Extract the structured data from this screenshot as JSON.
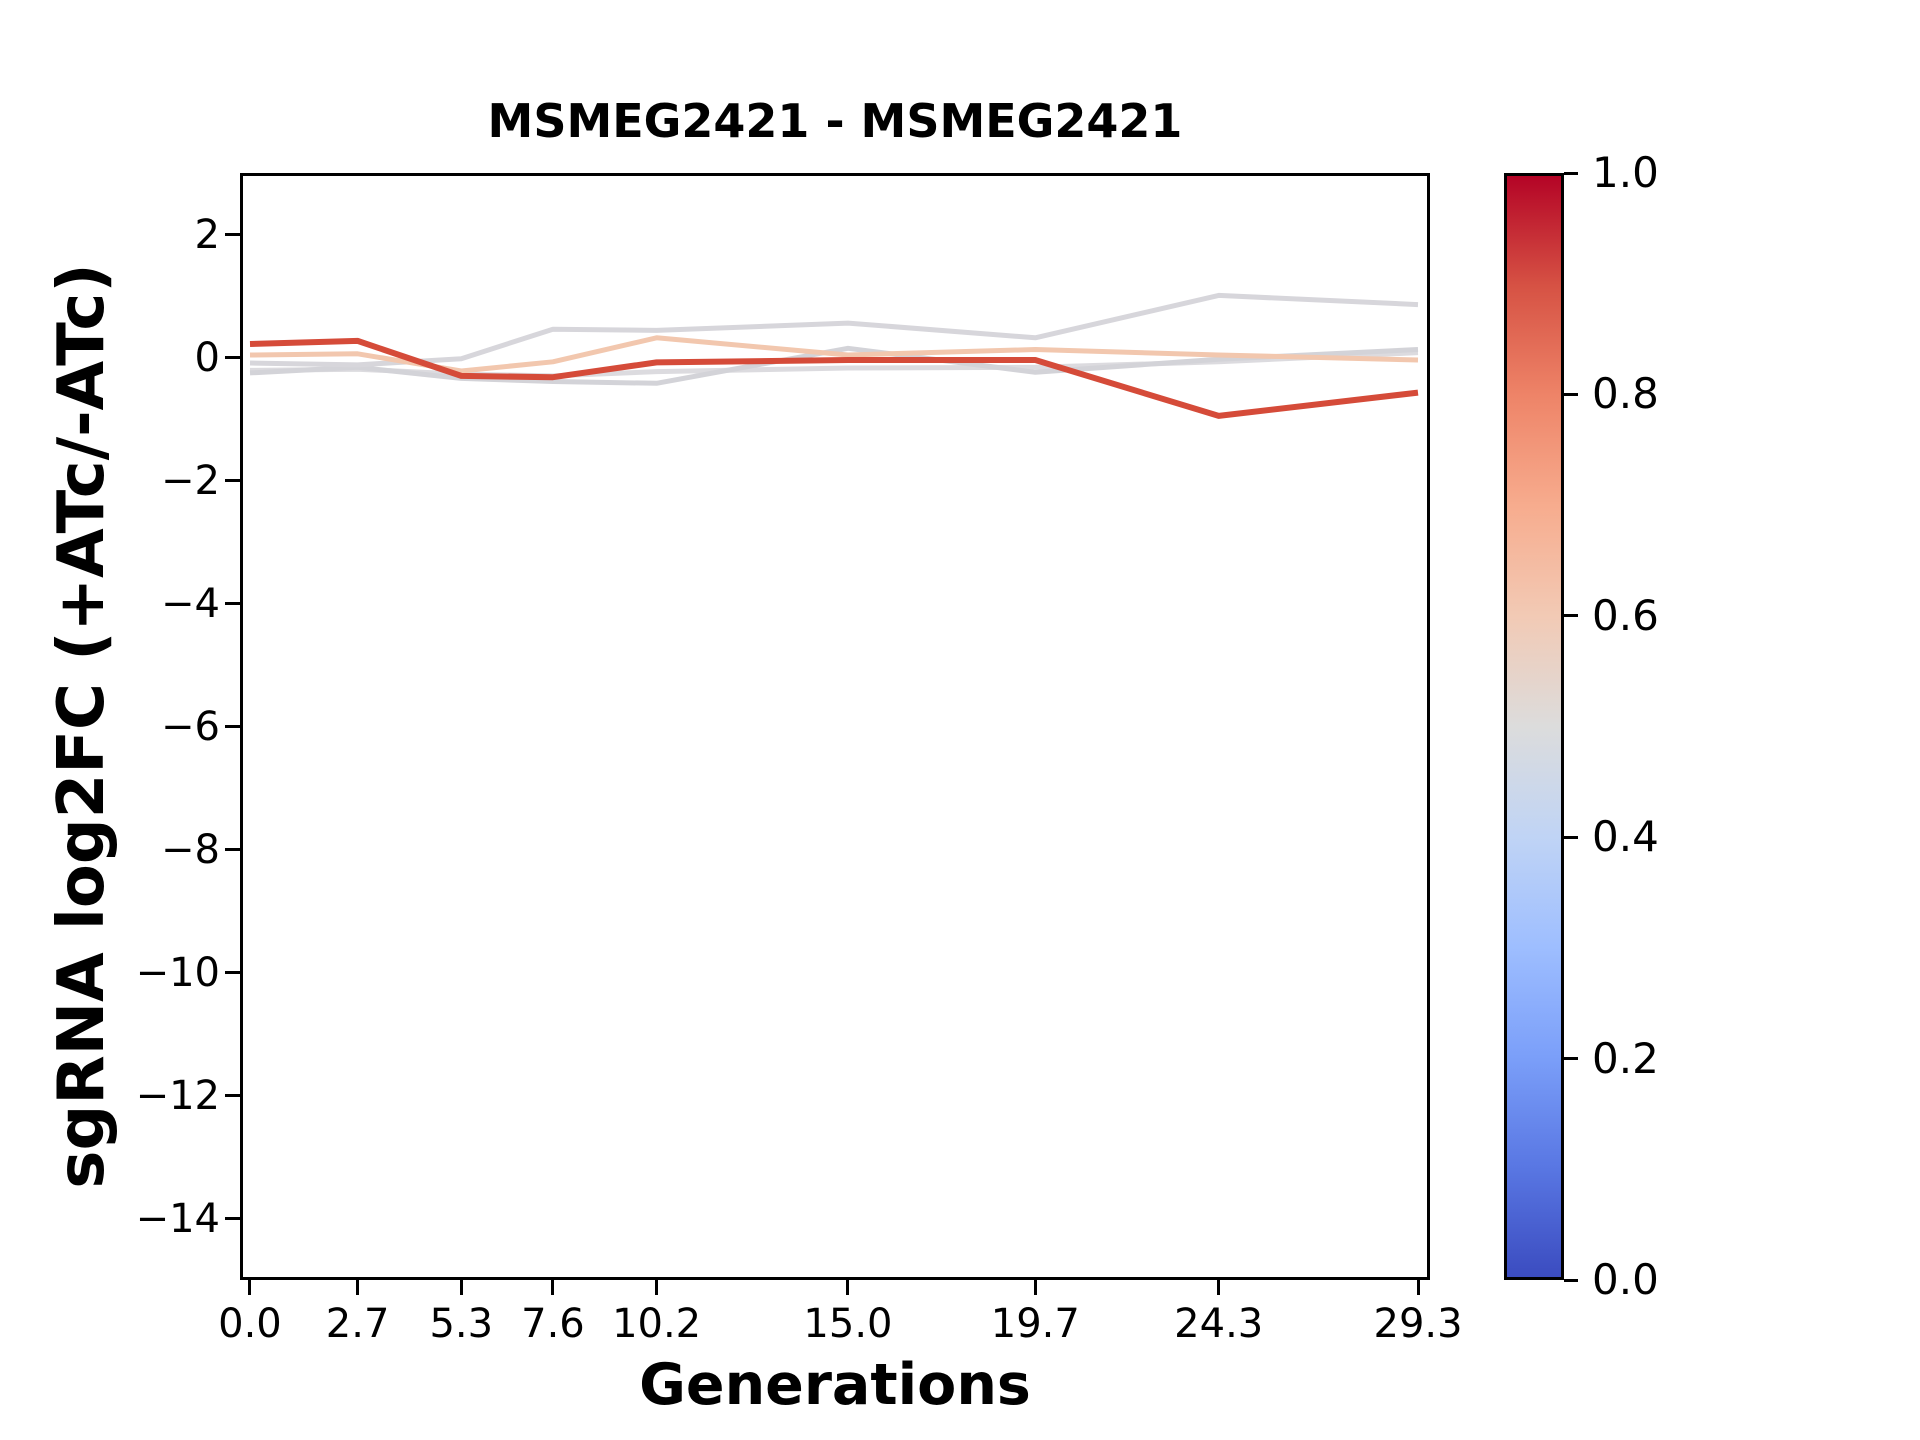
{
  "title": "MSMEG2421 - MSMEG2421",
  "xlabel": "Generations",
  "ylabel": "sgRNA log2FC (+ATc/-ATc)",
  "chart_data": {
    "type": "line",
    "title": "MSMEG2421 - MSMEG2421",
    "xlabel": "Generations",
    "ylabel": "sgRNA log2FC (+ATc/-ATc)",
    "x": [
      0.0,
      2.7,
      5.3,
      7.6,
      10.2,
      15.0,
      19.7,
      24.3,
      29.3
    ],
    "x_tick_labels": [
      "0.0",
      "2.7",
      "5.3",
      "7.6",
      "10.2",
      "15.0",
      "19.7",
      "24.3",
      "29.3"
    ],
    "y_ticks": [
      2,
      0,
      -2,
      -4,
      -6,
      -8,
      -10,
      -12,
      -14
    ],
    "y_tick_labels": [
      "2",
      "0",
      "−2",
      "−4",
      "−6",
      "−8",
      "−10",
      "−12",
      "−14"
    ],
    "xlim": [
      -0.25,
      29.6
    ],
    "ylim": [
      -15.0,
      3.0
    ],
    "grid": false,
    "legend": false,
    "series": [
      {
        "id": "line-1",
        "color": "#dcdbdf",
        "linewidth": 5,
        "values": [
          -0.21,
          -0.19,
          -0.27,
          -0.3,
          -0.23,
          -0.17,
          -0.16,
          -0.07,
          0.08
        ]
      },
      {
        "id": "line-2",
        "color": "#d3d3d8",
        "linewidth": 5,
        "values": [
          -0.25,
          -0.16,
          -0.34,
          -0.39,
          -0.42,
          0.15,
          -0.24,
          -0.03,
          0.13
        ]
      },
      {
        "id": "line-3",
        "color": "#d7d6db",
        "linewidth": 5,
        "values": [
          -0.09,
          -0.12,
          -0.02,
          0.46,
          0.44,
          0.56,
          0.32,
          1.01,
          0.86
        ]
      },
      {
        "id": "line-4",
        "color": "#f2c7ae",
        "linewidth": 5,
        "values": [
          0.04,
          0.06,
          -0.22,
          -0.07,
          0.32,
          0.04,
          0.13,
          0.04,
          -0.04
        ]
      },
      {
        "id": "line-5",
        "color": "#d54b39",
        "linewidth": 6,
        "values": [
          0.22,
          0.27,
          -0.3,
          -0.32,
          -0.08,
          -0.04,
          -0.04,
          -0.95,
          -0.57
        ]
      }
    ],
    "colorbar": {
      "tick_values": [
        1.0,
        0.8,
        0.6,
        0.4,
        0.2,
        0.0
      ],
      "tick_labels": [
        "1.0",
        "0.8",
        "0.6",
        "0.4",
        "0.2",
        "0.0"
      ],
      "gradient": [
        [
          0.0,
          "#3b4cc0"
        ],
        [
          0.1,
          "#5977e3"
        ],
        [
          0.2,
          "#7b9ff9"
        ],
        [
          0.3,
          "#9ebeff"
        ],
        [
          0.4,
          "#c0d4f5"
        ],
        [
          0.5,
          "#dcdcdc"
        ],
        [
          0.6,
          "#f2cab5"
        ],
        [
          0.7,
          "#f7ac8e"
        ],
        [
          0.8,
          "#ee8468"
        ],
        [
          0.9,
          "#d65244"
        ],
        [
          1.0,
          "#b40426"
        ]
      ]
    }
  }
}
